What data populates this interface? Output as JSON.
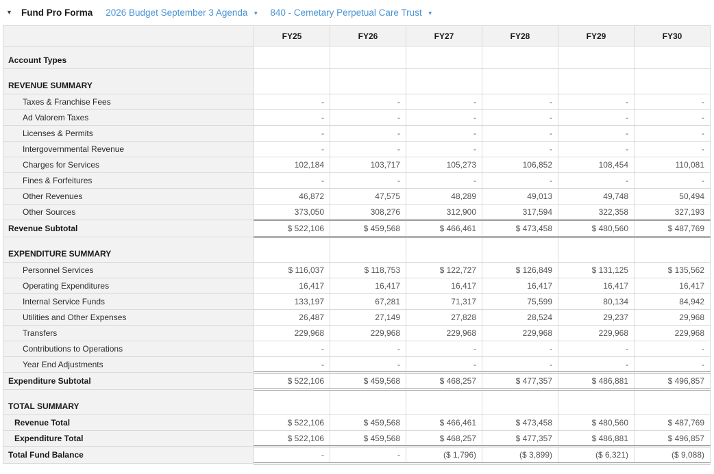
{
  "header": {
    "title": "Fund Pro Forma",
    "collapse_icon": "collapse-arrow",
    "budget_dropdown": {
      "label": "2026 Budget September 3 Agenda",
      "caret_icon": "chevron-down"
    },
    "fund_dropdown": {
      "label": "840 - Cemetary Perpetual Care Trust",
      "caret_icon": "chevron-down"
    }
  },
  "colors": {
    "accent": "#4a94d4",
    "label_column_bg": "#f2f2f2",
    "cell_border": "#d9d9d9",
    "double_rule": "#999999",
    "value_text": "#555555"
  },
  "table": {
    "columns": [
      "FY25",
      "FY26",
      "FY27",
      "FY28",
      "FY29",
      "FY30"
    ],
    "rows": [
      {
        "type": "section",
        "label": "Account Types",
        "values": [
          "",
          "",
          "",
          "",
          "",
          ""
        ]
      },
      {
        "type": "section",
        "label": "REVENUE SUMMARY",
        "values": [
          "",
          "",
          "",
          "",
          "",
          ""
        ]
      },
      {
        "type": "data",
        "label": "Taxes & Franchise Fees",
        "values": [
          "-",
          "-",
          "-",
          "-",
          "-",
          "-"
        ]
      },
      {
        "type": "data",
        "label": "Ad Valorem Taxes",
        "values": [
          "-",
          "-",
          "-",
          "-",
          "-",
          "-"
        ]
      },
      {
        "type": "data",
        "label": "Licenses & Permits",
        "values": [
          "-",
          "-",
          "-",
          "-",
          "-",
          "-"
        ]
      },
      {
        "type": "data",
        "label": "Intergovernmental Revenue",
        "values": [
          "-",
          "-",
          "-",
          "-",
          "-",
          "-"
        ]
      },
      {
        "type": "data",
        "label": "Charges for Services",
        "values": [
          "102,184",
          "103,717",
          "105,273",
          "106,852",
          "108,454",
          "110,081"
        ]
      },
      {
        "type": "data",
        "label": "Fines & Forfeitures",
        "values": [
          "-",
          "-",
          "-",
          "-",
          "-",
          "-"
        ]
      },
      {
        "type": "data",
        "label": "Other Revenues",
        "values": [
          "46,872",
          "47,575",
          "48,289",
          "49,013",
          "49,748",
          "50,494"
        ]
      },
      {
        "type": "data",
        "label": "Other Sources",
        "values": [
          "373,050",
          "308,276",
          "312,900",
          "317,594",
          "322,358",
          "327,193"
        ]
      },
      {
        "type": "subtotal",
        "label": "Revenue Subtotal",
        "values": [
          "$ 522,106",
          "$ 459,568",
          "$ 466,461",
          "$ 473,458",
          "$ 480,560",
          "$ 487,769"
        ]
      },
      {
        "type": "section",
        "label": "EXPENDITURE SUMMARY",
        "values": [
          "",
          "",
          "",
          "",
          "",
          ""
        ]
      },
      {
        "type": "data",
        "label": "Personnel Services",
        "values": [
          "$ 116,037",
          "$ 118,753",
          "$ 122,727",
          "$ 126,849",
          "$ 131,125",
          "$ 135,562"
        ]
      },
      {
        "type": "data",
        "label": "Operating Expenditures",
        "values": [
          "16,417",
          "16,417",
          "16,417",
          "16,417",
          "16,417",
          "16,417"
        ]
      },
      {
        "type": "data",
        "label": "Internal Service Funds",
        "values": [
          "133,197",
          "67,281",
          "71,317",
          "75,599",
          "80,134",
          "84,942"
        ]
      },
      {
        "type": "data",
        "label": "Utilities and Other Expenses",
        "values": [
          "26,487",
          "27,149",
          "27,828",
          "28,524",
          "29,237",
          "29,968"
        ]
      },
      {
        "type": "data",
        "label": "Transfers",
        "values": [
          "229,968",
          "229,968",
          "229,968",
          "229,968",
          "229,968",
          "229,968"
        ]
      },
      {
        "type": "data",
        "label": "Contributions to Operations",
        "values": [
          "-",
          "-",
          "-",
          "-",
          "-",
          "-"
        ]
      },
      {
        "type": "data",
        "label": "Year End Adjustments",
        "values": [
          "-",
          "-",
          "-",
          "-",
          "-",
          "-"
        ]
      },
      {
        "type": "subtotal",
        "label": "Expenditure Subtotal",
        "values": [
          "$ 522,106",
          "$ 459,568",
          "$ 468,257",
          "$ 477,357",
          "$ 486,881",
          "$ 496,857"
        ]
      },
      {
        "type": "section",
        "label": "TOTAL SUMMARY",
        "values": [
          "",
          "",
          "",
          "",
          "",
          ""
        ]
      },
      {
        "type": "total",
        "label": "Revenue Total",
        "values": [
          "$ 522,106",
          "$ 459,568",
          "$ 466,461",
          "$ 473,458",
          "$ 480,560",
          "$ 487,769"
        ]
      },
      {
        "type": "total",
        "label": "Expenditure Total",
        "values": [
          "$ 522,106",
          "$ 459,568",
          "$ 468,257",
          "$ 477,357",
          "$ 486,881",
          "$ 496,857"
        ]
      },
      {
        "type": "grand",
        "label": "Total Fund Balance",
        "values": [
          "-",
          "-",
          "($ 1,796)",
          "($ 3,899)",
          "($ 6,321)",
          "($ 9,088)"
        ]
      }
    ]
  }
}
